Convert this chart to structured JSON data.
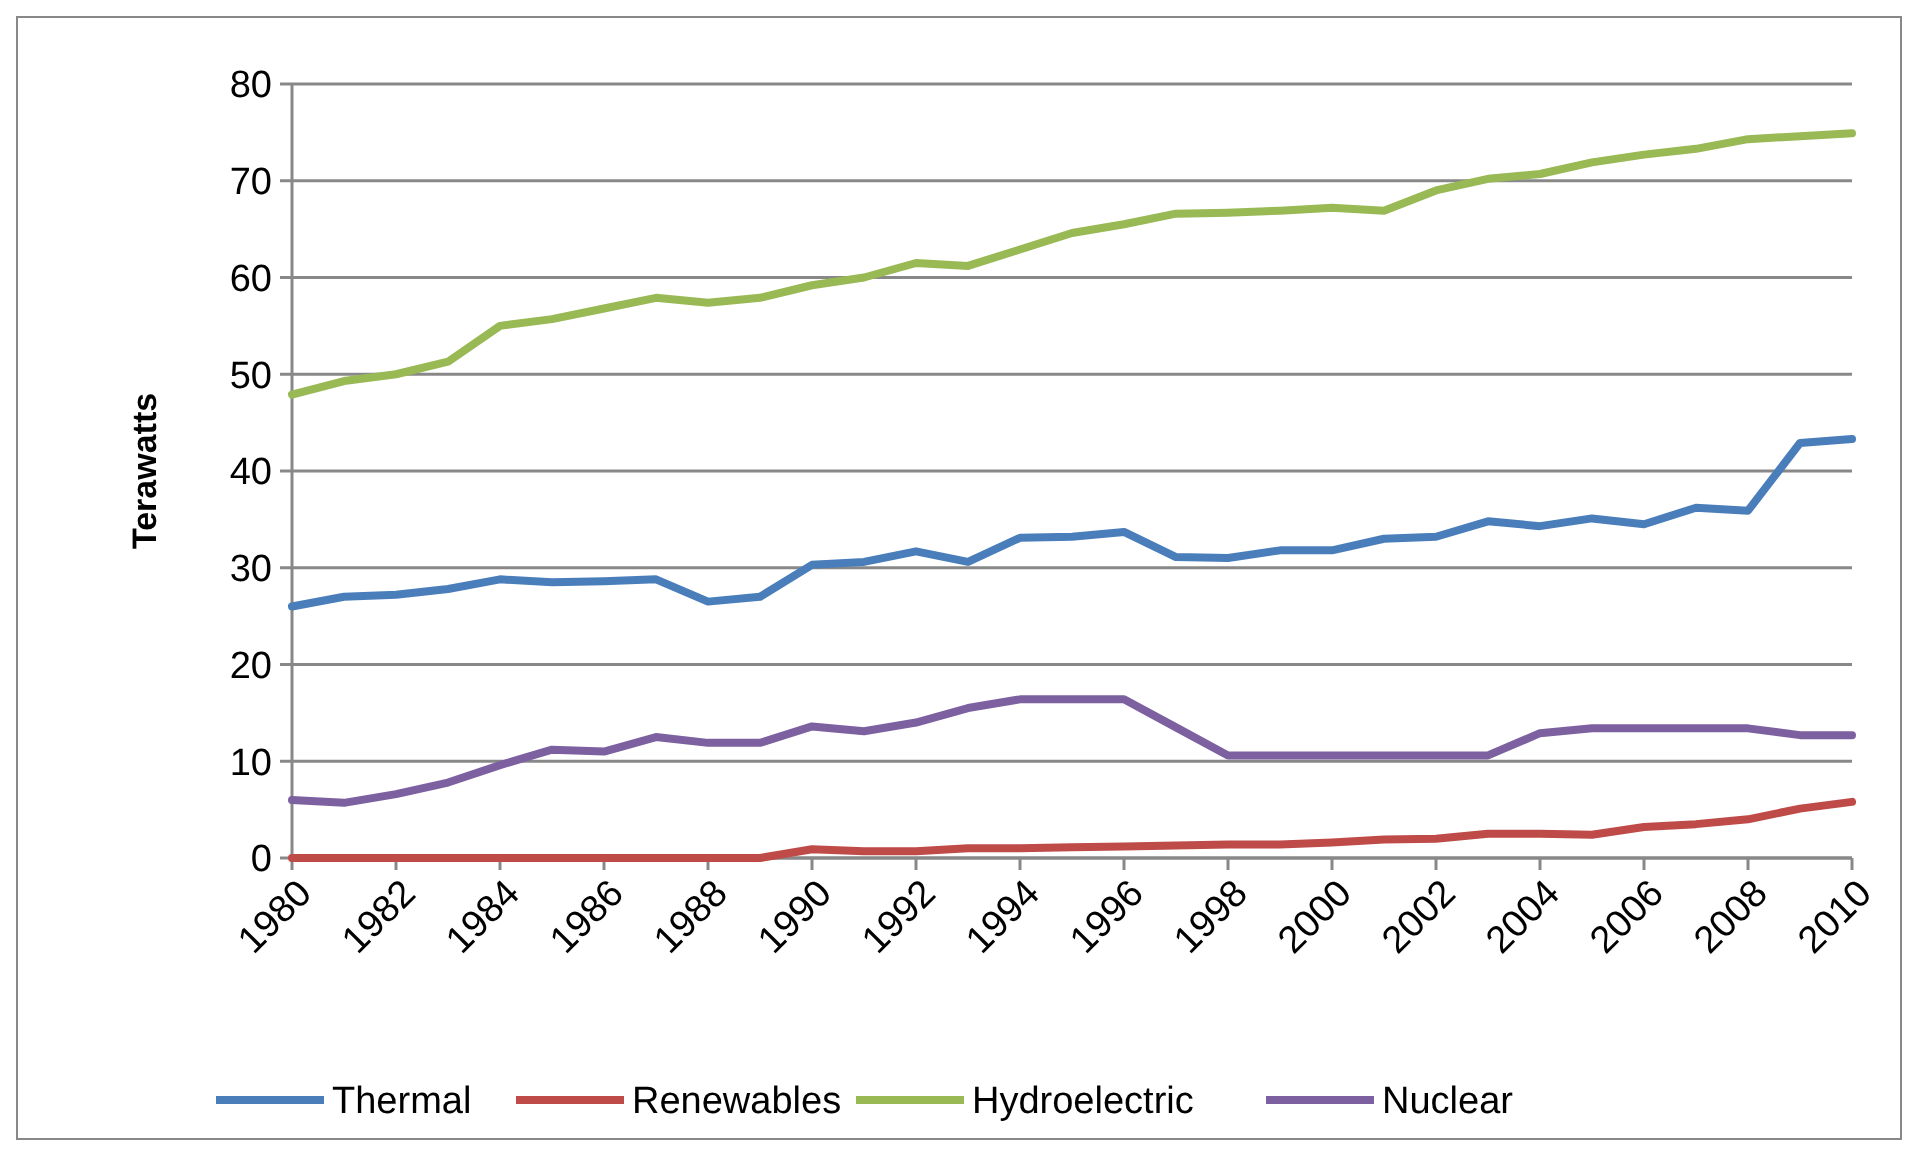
{
  "chart_data": {
    "type": "line",
    "ylabel": "Terawatts",
    "x": [
      1980,
      1981,
      1982,
      1983,
      1984,
      1985,
      1986,
      1987,
      1988,
      1989,
      1990,
      1991,
      1992,
      1993,
      1994,
      1995,
      1996,
      1997,
      1998,
      1999,
      2000,
      2001,
      2002,
      2003,
      2004,
      2005,
      2006,
      2007,
      2008,
      2009,
      2010
    ],
    "xlim": [
      1980,
      2010
    ],
    "xticks": [
      1980,
      1982,
      1984,
      1986,
      1988,
      1990,
      1992,
      1994,
      1996,
      1998,
      2000,
      2002,
      2004,
      2006,
      2008,
      2010
    ],
    "ylim": [
      0,
      80
    ],
    "yticks": [
      0,
      10,
      20,
      30,
      40,
      50,
      60,
      70,
      80
    ],
    "grid": "y",
    "legend": "bottom",
    "marker": "none",
    "line_style": "solid",
    "series": [
      {
        "name": "Thermal",
        "color": "#4a7ebb",
        "values": [
          26,
          27,
          27.2,
          27.8,
          28.8,
          28.5,
          28.6,
          28.8,
          26.5,
          27,
          30.3,
          30.6,
          31.7,
          30.6,
          33.1,
          33.2,
          33.7,
          31.1,
          31,
          31.8,
          31.8,
          33,
          33.2,
          34.8,
          34.3,
          35.1,
          34.5,
          36.2,
          35.9,
          42.9,
          43.3
        ]
      },
      {
        "name": "Renewables",
        "color": "#be4b48",
        "values": [
          0,
          0,
          0,
          0,
          0,
          0,
          0,
          0,
          0,
          0,
          0.9,
          0.7,
          0.7,
          1,
          1,
          1.1,
          1.2,
          1.3,
          1.4,
          1.4,
          1.6,
          1.9,
          2,
          2.5,
          2.5,
          2.4,
          3.2,
          3.5,
          4,
          5.1,
          5.8
        ]
      },
      {
        "name": "Hydroelectric",
        "color": "#98b954",
        "values": [
          47.9,
          49.3,
          50,
          51.3,
          55,
          55.7,
          56.8,
          57.9,
          57.4,
          57.9,
          59.2,
          60,
          61.5,
          61.2,
          62.9,
          64.6,
          65.5,
          66.6,
          66.7,
          66.9,
          67.2,
          66.9,
          69,
          70.2,
          70.7,
          71.9,
          72.7,
          73.3,
          74.3,
          74.6,
          74.9
        ]
      },
      {
        "name": "Nuclear",
        "color": "#7d60a0",
        "values": [
          6,
          5.7,
          6.6,
          7.8,
          9.6,
          11.2,
          11,
          12.5,
          11.9,
          11.9,
          13.6,
          13.1,
          14,
          15.5,
          16.4,
          16.4,
          16.4,
          13.5,
          10.6,
          10.6,
          10.6,
          10.6,
          10.6,
          10.6,
          12.9,
          13.4,
          13.4,
          13.4,
          13.4,
          12.7,
          12.7
        ]
      }
    ]
  }
}
